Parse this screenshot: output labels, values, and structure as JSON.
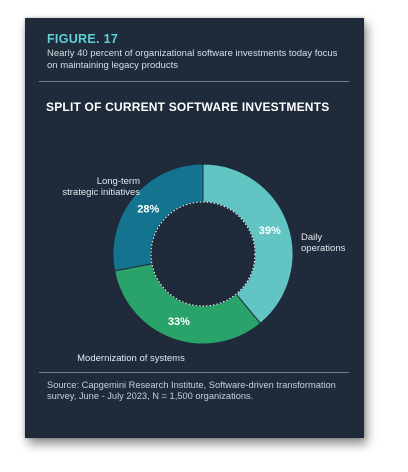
{
  "figure": {
    "label": "FIGURE. 17",
    "subtitle": "Nearly 40 percent of organizational software investments today focus on maintaining legacy products"
  },
  "chart_data": {
    "type": "pie",
    "title": "SPLIT OF CURRENT SOFTWARE INVESTMENTS",
    "donut": true,
    "slices": [
      {
        "label_lines": [
          "Daily",
          "operations"
        ],
        "value": 39,
        "display": "39%",
        "color": "#63c4c4"
      },
      {
        "label_lines": [
          "Modernization of systems"
        ],
        "value": 33,
        "display": "33%",
        "color": "#2aa36b"
      },
      {
        "label_lines": [
          "Long-term",
          "strategic initiatives"
        ],
        "value": 28,
        "display": "28%",
        "color": "#14738e"
      }
    ]
  },
  "source": "Source: Capgemini Research Institute, Software-driven transformation survey, June - July 2023, N = 1,500 organizations."
}
